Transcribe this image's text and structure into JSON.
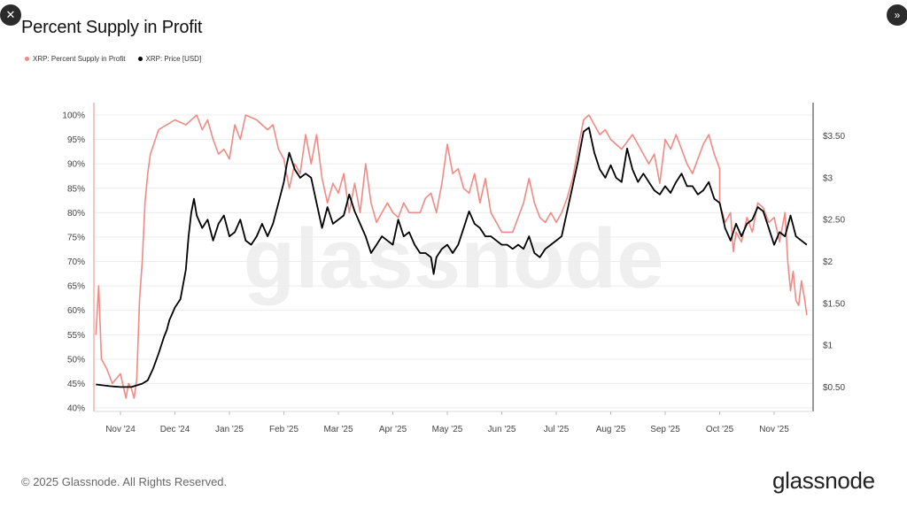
{
  "window": {
    "close_icon": "close-icon",
    "expand_icon": "chevron-double-right-icon"
  },
  "title": "Percent Supply in Profit",
  "legend": [
    {
      "label": "XRP: Percent Supply in Profit",
      "color": "#f08a85"
    },
    {
      "label": "XRP: Price [USD]",
      "color": "#000000"
    }
  ],
  "watermark": "glassnode",
  "footer": {
    "copyright": "© 2025 Glassnode. All Rights Reserved.",
    "logo": "glassnode"
  },
  "chart_data": {
    "type": "line",
    "title": "Percent Supply in Profit",
    "x_labels": [
      "Nov '24",
      "Dec '24",
      "Jan '25",
      "Feb '25",
      "Mar '25",
      "Apr '25",
      "May '25",
      "Jun '25",
      "Jul '25",
      "Aug '25",
      "Sep '25",
      "Oct '25",
      "Nov '25"
    ],
    "x_range": [
      -0.45,
      12.65
    ],
    "y_left": {
      "ticks": [
        "40%",
        "45%",
        "50%",
        "55%",
        "60%",
        "65%",
        "70%",
        "75%",
        "80%",
        "85%",
        "90%",
        "95%",
        "100%"
      ],
      "range": [
        40,
        100
      ]
    },
    "y_right": {
      "ticks": [
        "$0.50",
        "$1",
        "$1.50",
        "$2",
        "$2.50",
        "$3",
        "$3.50"
      ],
      "range": [
        0.25,
        3.75
      ]
    },
    "series": [
      {
        "name": "XRP: Percent Supply in Profit",
        "axis": "left",
        "color": "#f08a85",
        "points": [
          [
            -0.45,
            55
          ],
          [
            -0.4,
            65
          ],
          [
            -0.35,
            50
          ],
          [
            -0.25,
            48
          ],
          [
            -0.15,
            45
          ],
          [
            0,
            47
          ],
          [
            0.1,
            42
          ],
          [
            0.15,
            45
          ],
          [
            0.2,
            44
          ],
          [
            0.25,
            42
          ],
          [
            0.3,
            46
          ],
          [
            0.35,
            62
          ],
          [
            0.4,
            70
          ],
          [
            0.45,
            82
          ],
          [
            0.5,
            88
          ],
          [
            0.55,
            92
          ],
          [
            0.7,
            97
          ],
          [
            1,
            99
          ],
          [
            1.2,
            98
          ],
          [
            1.4,
            100
          ],
          [
            1.5,
            97
          ],
          [
            1.6,
            99
          ],
          [
            1.7,
            95
          ],
          [
            1.8,
            92
          ],
          [
            1.9,
            93
          ],
          [
            2,
            91
          ],
          [
            2.1,
            98
          ],
          [
            2.2,
            95
          ],
          [
            2.3,
            100
          ],
          [
            2.5,
            99
          ],
          [
            2.7,
            97
          ],
          [
            2.8,
            98
          ],
          [
            2.9,
            93
          ],
          [
            3,
            91
          ],
          [
            3.1,
            85
          ],
          [
            3.2,
            90
          ],
          [
            3.3,
            88
          ],
          [
            3.4,
            96
          ],
          [
            3.5,
            90
          ],
          [
            3.6,
            96
          ],
          [
            3.7,
            87
          ],
          [
            3.8,
            82
          ],
          [
            3.9,
            86
          ],
          [
            4,
            84
          ],
          [
            4.1,
            88
          ],
          [
            4.2,
            80
          ],
          [
            4.3,
            86
          ],
          [
            4.4,
            80
          ],
          [
            4.5,
            90
          ],
          [
            4.6,
            82
          ],
          [
            4.7,
            78
          ],
          [
            4.8,
            80
          ],
          [
            4.9,
            82
          ],
          [
            5,
            80
          ],
          [
            5.1,
            79
          ],
          [
            5.2,
            82
          ],
          [
            5.3,
            80
          ],
          [
            5.4,
            80
          ],
          [
            5.5,
            80
          ],
          [
            5.6,
            83
          ],
          [
            5.7,
            84
          ],
          [
            5.8,
            80
          ],
          [
            5.9,
            86
          ],
          [
            6,
            94
          ],
          [
            6.1,
            88
          ],
          [
            6.2,
            89
          ],
          [
            6.3,
            85
          ],
          [
            6.4,
            84
          ],
          [
            6.5,
            88
          ],
          [
            6.6,
            82
          ],
          [
            6.7,
            87
          ],
          [
            6.8,
            80
          ],
          [
            6.9,
            78
          ],
          [
            7,
            76
          ],
          [
            7.2,
            76
          ],
          [
            7.4,
            82
          ],
          [
            7.5,
            87
          ],
          [
            7.6,
            82
          ],
          [
            7.7,
            79
          ],
          [
            7.8,
            78
          ],
          [
            7.9,
            80
          ],
          [
            8,
            78
          ],
          [
            8.1,
            80
          ],
          [
            8.2,
            83
          ],
          [
            8.3,
            87
          ],
          [
            8.4,
            93
          ],
          [
            8.5,
            99
          ],
          [
            8.6,
            100
          ],
          [
            8.7,
            98
          ],
          [
            8.8,
            96
          ],
          [
            8.9,
            97
          ],
          [
            9,
            95
          ],
          [
            9.2,
            93
          ],
          [
            9.4,
            96
          ],
          [
            9.6,
            92
          ],
          [
            9.7,
            90
          ],
          [
            9.8,
            92
          ],
          [
            9.9,
            86
          ],
          [
            10,
            95
          ],
          [
            10.1,
            93
          ],
          [
            10.2,
            96
          ],
          [
            10.3,
            93
          ],
          [
            10.4,
            90
          ],
          [
            10.5,
            88
          ],
          [
            10.6,
            91
          ],
          [
            10.7,
            94
          ],
          [
            10.8,
            96
          ],
          [
            10.9,
            92
          ],
          [
            11,
            89
          ],
          [
            11,
            82
          ],
          [
            11.1,
            78
          ],
          [
            11.2,
            80
          ],
          [
            11.25,
            72
          ],
          [
            11.3,
            76
          ],
          [
            11.4,
            74
          ],
          [
            11.5,
            79
          ],
          [
            11.6,
            76
          ],
          [
            11.7,
            82
          ],
          [
            11.8,
            81
          ],
          [
            11.9,
            78
          ],
          [
            12,
            79
          ],
          [
            12.1,
            74
          ],
          [
            12.2,
            80
          ],
          [
            12.25,
            70
          ],
          [
            12.3,
            64
          ],
          [
            12.35,
            68
          ],
          [
            12.4,
            62
          ],
          [
            12.45,
            61
          ],
          [
            12.5,
            66
          ],
          [
            12.55,
            63
          ],
          [
            12.6,
            59
          ]
        ]
      },
      {
        "name": "XRP: Price [USD]",
        "axis": "right",
        "color": "#000000",
        "points": [
          [
            -0.45,
            0.53
          ],
          [
            -0.2,
            0.51
          ],
          [
            0,
            0.5
          ],
          [
            0.2,
            0.5
          ],
          [
            0.3,
            0.52
          ],
          [
            0.4,
            0.54
          ],
          [
            0.5,
            0.58
          ],
          [
            0.6,
            0.72
          ],
          [
            0.7,
            0.9
          ],
          [
            0.8,
            1.1
          ],
          [
            0.85,
            1.18
          ],
          [
            0.9,
            1.3
          ],
          [
            1,
            1.45
          ],
          [
            1.1,
            1.55
          ],
          [
            1.2,
            1.9
          ],
          [
            1.25,
            2.3
          ],
          [
            1.3,
            2.58
          ],
          [
            1.35,
            2.75
          ],
          [
            1.4,
            2.55
          ],
          [
            1.5,
            2.4
          ],
          [
            1.6,
            2.5
          ],
          [
            1.7,
            2.25
          ],
          [
            1.8,
            2.45
          ],
          [
            1.9,
            2.55
          ],
          [
            2,
            2.3
          ],
          [
            2.1,
            2.35
          ],
          [
            2.2,
            2.5
          ],
          [
            2.3,
            2.25
          ],
          [
            2.4,
            2.2
          ],
          [
            2.5,
            2.3
          ],
          [
            2.6,
            2.45
          ],
          [
            2.7,
            2.3
          ],
          [
            2.8,
            2.45
          ],
          [
            2.9,
            2.7
          ],
          [
            3,
            2.95
          ],
          [
            3.05,
            3.15
          ],
          [
            3.1,
            3.3
          ],
          [
            3.2,
            3.1
          ],
          [
            3.3,
            3.0
          ],
          [
            3.4,
            3.05
          ],
          [
            3.5,
            3.0
          ],
          [
            3.6,
            2.7
          ],
          [
            3.7,
            2.4
          ],
          [
            3.8,
            2.65
          ],
          [
            3.9,
            2.45
          ],
          [
            4,
            2.5
          ],
          [
            4.1,
            2.55
          ],
          [
            4.2,
            2.8
          ],
          [
            4.3,
            2.6
          ],
          [
            4.4,
            2.45
          ],
          [
            4.5,
            2.3
          ],
          [
            4.6,
            2.1
          ],
          [
            4.7,
            2.2
          ],
          [
            4.8,
            2.3
          ],
          [
            4.9,
            2.25
          ],
          [
            5,
            2.2
          ],
          [
            5.1,
            2.5
          ],
          [
            5.2,
            2.3
          ],
          [
            5.3,
            2.35
          ],
          [
            5.4,
            2.2
          ],
          [
            5.5,
            2.1
          ],
          [
            5.6,
            2.1
          ],
          [
            5.7,
            2.05
          ],
          [
            5.75,
            1.85
          ],
          [
            5.8,
            2.05
          ],
          [
            5.9,
            2.15
          ],
          [
            6,
            2.2
          ],
          [
            6.1,
            2.1
          ],
          [
            6.2,
            2.2
          ],
          [
            6.3,
            2.4
          ],
          [
            6.4,
            2.6
          ],
          [
            6.5,
            2.45
          ],
          [
            6.6,
            2.4
          ],
          [
            6.7,
            2.3
          ],
          [
            6.8,
            2.3
          ],
          [
            6.9,
            2.25
          ],
          [
            7,
            2.2
          ],
          [
            7.1,
            2.2
          ],
          [
            7.2,
            2.15
          ],
          [
            7.3,
            2.2
          ],
          [
            7.4,
            2.15
          ],
          [
            7.5,
            2.3
          ],
          [
            7.6,
            2.1
          ],
          [
            7.7,
            2.05
          ],
          [
            7.8,
            2.15
          ],
          [
            7.9,
            2.2
          ],
          [
            8,
            2.25
          ],
          [
            8.1,
            2.3
          ],
          [
            8.2,
            2.6
          ],
          [
            8.3,
            2.9
          ],
          [
            8.4,
            3.2
          ],
          [
            8.5,
            3.55
          ],
          [
            8.6,
            3.6
          ],
          [
            8.7,
            3.3
          ],
          [
            8.8,
            3.1
          ],
          [
            8.9,
            3.0
          ],
          [
            9,
            3.15
          ],
          [
            9.1,
            3.0
          ],
          [
            9.2,
            2.95
          ],
          [
            9.3,
            3.35
          ],
          [
            9.4,
            3.1
          ],
          [
            9.5,
            2.95
          ],
          [
            9.6,
            3.05
          ],
          [
            9.7,
            2.95
          ],
          [
            9.8,
            2.85
          ],
          [
            9.9,
            2.8
          ],
          [
            10,
            2.9
          ],
          [
            10.1,
            2.82
          ],
          [
            10.2,
            2.95
          ],
          [
            10.3,
            3.05
          ],
          [
            10.4,
            2.9
          ],
          [
            10.5,
            2.9
          ],
          [
            10.6,
            2.8
          ],
          [
            10.7,
            2.85
          ],
          [
            10.8,
            2.95
          ],
          [
            10.9,
            2.75
          ],
          [
            11,
            2.7
          ],
          [
            11.1,
            2.4
          ],
          [
            11.2,
            2.25
          ],
          [
            11.3,
            2.45
          ],
          [
            11.4,
            2.3
          ],
          [
            11.5,
            2.45
          ],
          [
            11.6,
            2.5
          ],
          [
            11.7,
            2.65
          ],
          [
            11.8,
            2.6
          ],
          [
            11.9,
            2.4
          ],
          [
            12,
            2.2
          ],
          [
            12.1,
            2.35
          ],
          [
            12.2,
            2.3
          ],
          [
            12.3,
            2.55
          ],
          [
            12.4,
            2.3
          ],
          [
            12.5,
            2.25
          ],
          [
            12.6,
            2.2
          ]
        ]
      }
    ]
  }
}
